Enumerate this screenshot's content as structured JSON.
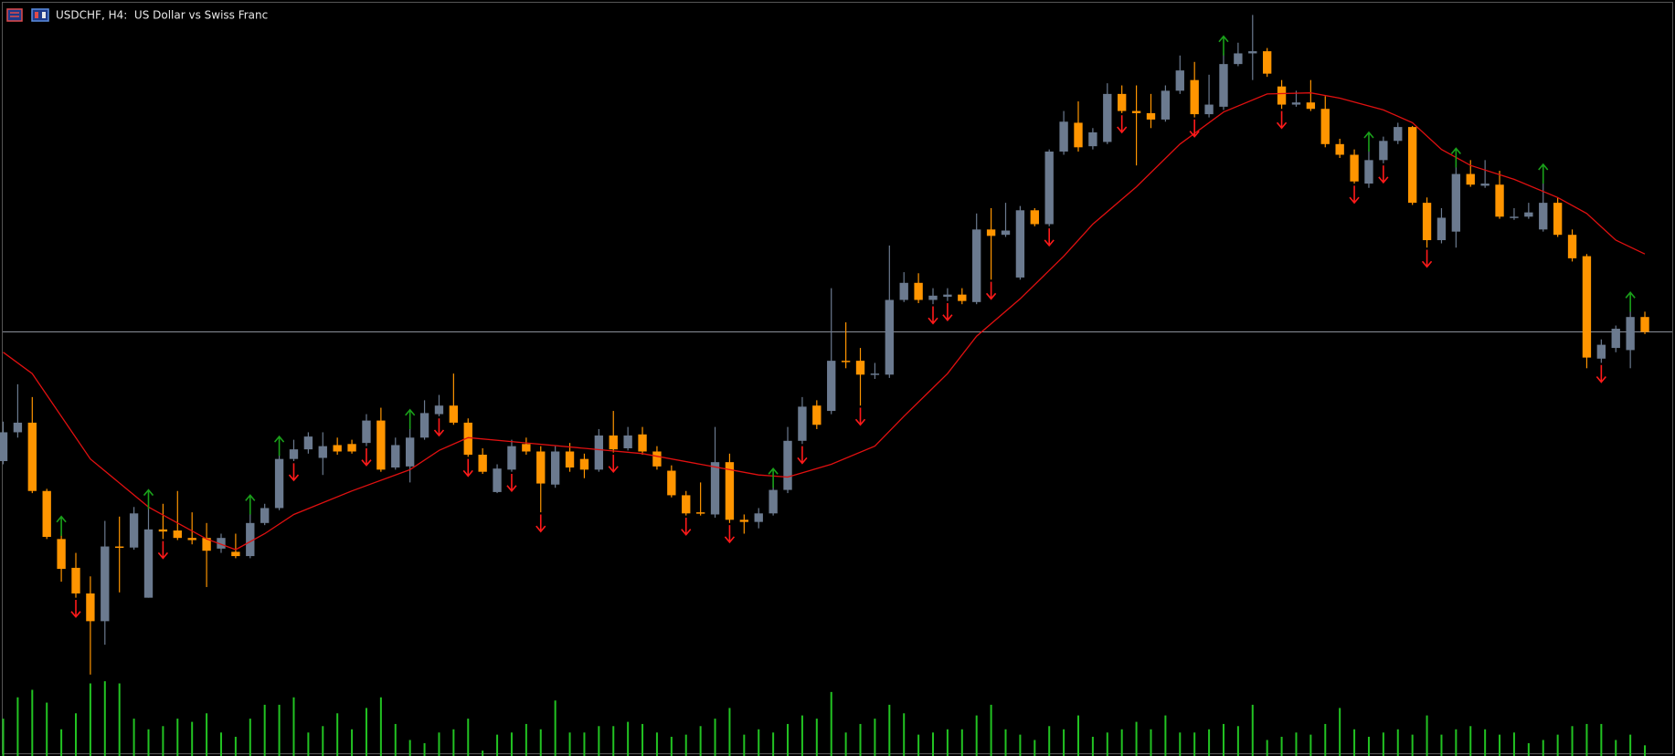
{
  "chart_data": {
    "type": "candlestick",
    "title": "USDCHF, H4:  US Dollar vs Swiss Franc",
    "ylim": [
      0,
      700
    ],
    "up_color": "#6b7a8f",
    "down_color": "#ff9500",
    "open": [
      268,
      295,
      304,
      240,
      195,
      168,
      144,
      118,
      188,
      187,
      140,
      204,
      203,
      196,
      196,
      186,
      183,
      179,
      210,
      224,
      270,
      279,
      271,
      283,
      284,
      285,
      306,
      262,
      263,
      290,
      312,
      320,
      304,
      274,
      239,
      260,
      284,
      277,
      246,
      277,
      270,
      260,
      292,
      280,
      293,
      277,
      259,
      236,
      220,
      218,
      267,
      213,
      211,
      219,
      241,
      287,
      320,
      315,
      362,
      362,
      349,
      349,
      419,
      435,
      419,
      422,
      424,
      417,
      485,
      480,
      440,
      503,
      490,
      558,
      585,
      563,
      567,
      612,
      596,
      594,
      588,
      615,
      625,
      593,
      600,
      640,
      650,
      652,
      619,
      602,
      604,
      598,
      565,
      555,
      528,
      550,
      568,
      581,
      510,
      475,
      483,
      537,
      526,
      527,
      496,
      497,
      485,
      510,
      480,
      460,
      364,
      374,
      372,
      403
    ],
    "high": [
      305,
      340,
      328,
      242,
      200,
      182,
      160,
      212,
      216,
      225,
      225,
      228,
      240,
      220,
      210,
      200,
      200,
      220,
      228,
      275,
      288,
      295,
      295,
      290,
      288,
      312,
      318,
      290,
      300,
      325,
      330,
      350,
      308,
      280,
      265,
      288,
      290,
      282,
      282,
      285,
      275,
      298,
      315,
      300,
      300,
      282,
      264,
      240,
      248,
      300,
      275,
      218,
      224,
      245,
      300,
      328,
      325,
      430,
      398,
      374,
      360,
      470,
      445,
      444,
      430,
      430,
      430,
      500,
      505,
      510,
      507,
      505,
      560,
      596,
      605,
      580,
      622,
      620,
      620,
      612,
      620,
      648,
      642,
      630,
      650,
      660,
      686,
      655,
      625,
      615,
      625,
      610,
      570,
      560,
      560,
      572,
      585,
      582,
      515,
      505,
      545,
      550,
      550,
      540,
      505,
      510,
      530,
      515,
      485,
      462,
      382,
      395,
      410,
      408
    ],
    "low": [
      265,
      290,
      238,
      195,
      155,
      140,
      68,
      96,
      145,
      185,
      140,
      195,
      194,
      190,
      150,
      182,
      177,
      177,
      208,
      222,
      268,
      275,
      255,
      274,
      275,
      282,
      258,
      260,
      248,
      288,
      310,
      302,
      272,
      256,
      238,
      258,
      274,
      220,
      243,
      258,
      252,
      258,
      276,
      278,
      274,
      260,
      234,
      217,
      217,
      215,
      210,
      200,
      205,
      217,
      238,
      284,
      298,
      312,
      355,
      320,
      345,
      346,
      417,
      416,
      415,
      418,
      415,
      415,
      438,
      478,
      438,
      488,
      488,
      555,
      558,
      560,
      565,
      594,
      545,
      580,
      586,
      612,
      590,
      590,
      597,
      638,
      625,
      628,
      598,
      600,
      596,
      562,
      552,
      528,
      524,
      547,
      565,
      508,
      468,
      472,
      468,
      525,
      524,
      495,
      494,
      495,
      483,
      478,
      455,
      355,
      360,
      370,
      355,
      387
    ],
    "close": [
      295,
      304,
      240,
      197,
      167,
      144,
      118,
      188,
      187,
      219,
      204,
      202,
      196,
      194,
      184,
      196,
      179,
      210,
      224,
      270,
      279,
      291,
      282,
      277,
      277,
      306,
      260,
      283,
      290,
      313,
      320,
      304,
      274,
      258,
      261,
      282,
      277,
      247,
      277,
      262,
      260,
      292,
      279,
      292,
      277,
      263,
      236,
      219,
      219,
      267,
      213,
      211,
      219,
      241,
      287,
      319,
      302,
      362,
      361,
      349,
      350,
      419,
      435,
      419,
      423,
      424,
      418,
      485,
      479,
      484,
      503,
      490,
      558,
      586,
      562,
      576,
      612,
      596,
      594,
      588,
      615,
      634,
      593,
      602,
      640,
      650,
      652,
      631,
      602,
      604,
      598,
      565,
      555,
      530,
      550,
      568,
      581,
      510,
      475,
      496,
      537,
      527,
      528,
      497,
      497,
      501,
      510,
      480,
      458,
      365,
      377,
      392,
      403,
      389
    ],
    "ma": {
      "color": "#e01010",
      "x": [
        0,
        2,
        6,
        10,
        14,
        16,
        18,
        20,
        24,
        28,
        30,
        32,
        36,
        40,
        44,
        48,
        52,
        54,
        57,
        60,
        62,
        65,
        67,
        70,
        73,
        75,
        78,
        81,
        84,
        87,
        90,
        92,
        95,
        97,
        99,
        101,
        104,
        107,
        109,
        111,
        113
      ],
      "values": [
        370,
        350,
        270,
        225,
        195,
        185,
        200,
        218,
        240,
        260,
        278,
        290,
        285,
        280,
        275,
        265,
        255,
        253,
        265,
        282,
        310,
        350,
        385,
        420,
        460,
        490,
        525,
        565,
        595,
        612,
        613,
        608,
        597,
        585,
        560,
        545,
        532,
        515,
        500,
        475,
        462
      ]
    },
    "volume": {
      "color": "#22c322",
      "ylim": [
        0,
        70
      ],
      "values": [
        35,
        55,
        62,
        50,
        25,
        40,
        68,
        70,
        68,
        35,
        25,
        28,
        35,
        32,
        40,
        22,
        18,
        35,
        48,
        48,
        55,
        22,
        28,
        40,
        25,
        45,
        55,
        30,
        15,
        12,
        22,
        25,
        35,
        5,
        20,
        22,
        30,
        25,
        52,
        22,
        22,
        28,
        28,
        32,
        30,
        22,
        18,
        20,
        28,
        35,
        45,
        20,
        25,
        22,
        30,
        38,
        35,
        60,
        22,
        30,
        35,
        48,
        40,
        20,
        22,
        25,
        25,
        38,
        48,
        25,
        20,
        15,
        28,
        25,
        38,
        18,
        22,
        25,
        32,
        25,
        38,
        22,
        22,
        25,
        30,
        28,
        48,
        15,
        18,
        22,
        20,
        30,
        45,
        25,
        18,
        22,
        25,
        20,
        38,
        20,
        25,
        28,
        25,
        20,
        22,
        12,
        15,
        20,
        28,
        30,
        30,
        15,
        20,
        10
      ]
    },
    "signals": {
      "up_color": "#1aa01a",
      "down_color": "#ff1a1a",
      "up": [
        4,
        10,
        17,
        19,
        28,
        53,
        84,
        94,
        100,
        106,
        112
      ],
      "down": [
        5,
        11,
        20,
        25,
        30,
        32,
        35,
        37,
        42,
        47,
        50,
        55,
        59,
        64,
        65,
        68,
        72,
        77,
        82,
        88,
        93,
        95,
        98,
        110
      ]
    },
    "hline": 389,
    "hline_color": "#8a8f99"
  }
}
